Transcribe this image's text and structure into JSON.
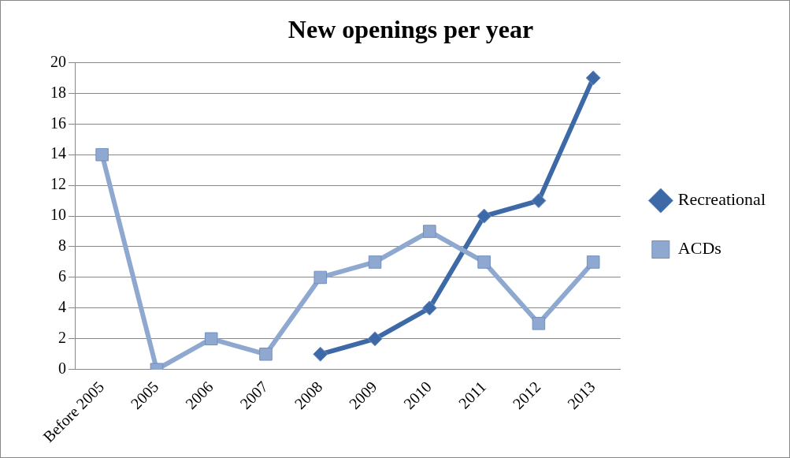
{
  "chart_data": {
    "type": "line",
    "title": "New openings per year",
    "categories": [
      "Before 2005",
      "2005",
      "2006",
      "2007",
      "2008",
      "2009",
      "2010",
      "2011",
      "2012",
      "2013"
    ],
    "series": [
      {
        "name": "Recreational",
        "color": "#3d6aa6",
        "marker": "diamond",
        "values": [
          null,
          null,
          null,
          null,
          1,
          2,
          4,
          10,
          11,
          19
        ]
      },
      {
        "name": "ACDs",
        "color": "#8ea8d0",
        "marker": "square",
        "values": [
          14,
          0,
          2,
          1,
          6,
          7,
          9,
          7,
          3,
          7
        ]
      }
    ],
    "ylim": [
      0,
      20
    ],
    "yticks": [
      0,
      2,
      4,
      6,
      8,
      10,
      12,
      14,
      16,
      18,
      20
    ],
    "grid": "y",
    "legend": "right"
  }
}
